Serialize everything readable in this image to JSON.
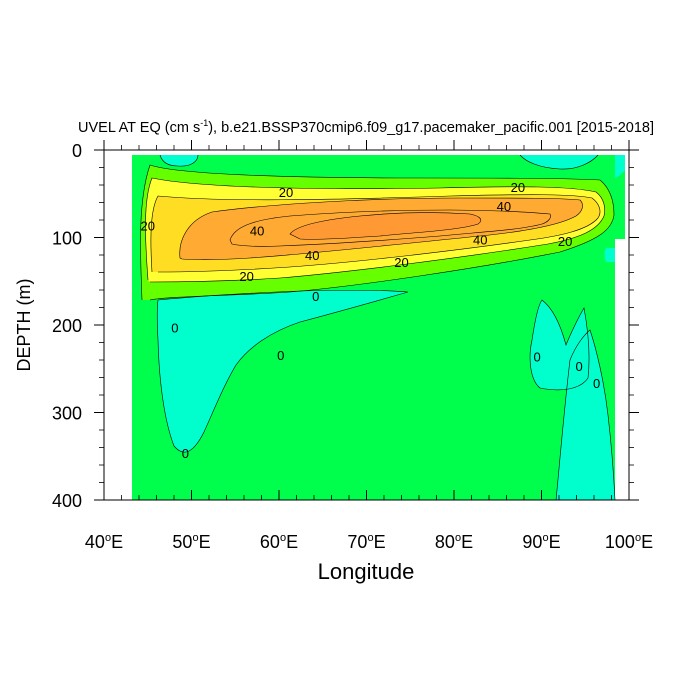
{
  "chart_data": {
    "type": "contour",
    "title": "UVEL AT EQ (cm s",
    "title_sup": "-1",
    "title_rest": "), b.e21.BSSP370cmip6.f09_g17.pacemaker_pacific.001 [2015-2018]",
    "xlabel": "Longitude",
    "ylabel": "DEPTH (m)",
    "xlim": [
      40,
      100
    ],
    "ylim": [
      400,
      0
    ],
    "x_ticks": [
      {
        "value": 40,
        "label": "40",
        "unit": "E"
      },
      {
        "value": 50,
        "label": "50",
        "unit": "E"
      },
      {
        "value": 60,
        "label": "60",
        "unit": "E"
      },
      {
        "value": 70,
        "label": "70",
        "unit": "E"
      },
      {
        "value": 80,
        "label": "80",
        "unit": "E"
      },
      {
        "value": 90,
        "label": "90",
        "unit": "E"
      },
      {
        "value": 100,
        "label": "100",
        "unit": "E"
      }
    ],
    "degree_symbol": "o",
    "y_ticks": [
      {
        "value": 0,
        "label": "0"
      },
      {
        "value": 100,
        "label": "100"
      },
      {
        "value": 200,
        "label": "200"
      },
      {
        "value": 300,
        "label": "300"
      },
      {
        "value": 400,
        "label": "400"
      }
    ],
    "level_colors": {
      "negative": "#00ffcc",
      "zero_to_10": "#00ff4d",
      "10_to_20": "#66ff00",
      "20_to_30": "#ffff33",
      "30_to_40": "#ffdd22",
      "40_to_50": "#ffaa33",
      "above_50": "#ff9933"
    },
    "contour_labels": [
      {
        "text": "20",
        "lon": 60.8,
        "depth": 48
      },
      {
        "text": "20",
        "lon": 87.3,
        "depth": 42
      },
      {
        "text": "40",
        "lon": 85.7,
        "depth": 64
      },
      {
        "text": "20",
        "lon": 45.0,
        "depth": 86
      },
      {
        "text": "40",
        "lon": 57.5,
        "depth": 92
      },
      {
        "text": "40",
        "lon": 63.8,
        "depth": 120
      },
      {
        "text": "40",
        "lon": 83.0,
        "depth": 102
      },
      {
        "text": "20",
        "lon": 92.7,
        "depth": 104
      },
      {
        "text": "20",
        "lon": 74.0,
        "depth": 128
      },
      {
        "text": "20",
        "lon": 56.3,
        "depth": 144
      },
      {
        "text": "0",
        "lon": 64.2,
        "depth": 167
      },
      {
        "text": "0",
        "lon": 48.1,
        "depth": 203
      },
      {
        "text": "0",
        "lon": 60.2,
        "depth": 234
      },
      {
        "text": "0",
        "lon": 49.3,
        "depth": 346
      },
      {
        "text": "0",
        "lon": 89.5,
        "depth": 236
      },
      {
        "text": "0",
        "lon": 94.3,
        "depth": 247
      },
      {
        "text": "0",
        "lon": 96.3,
        "depth": 266
      }
    ]
  }
}
